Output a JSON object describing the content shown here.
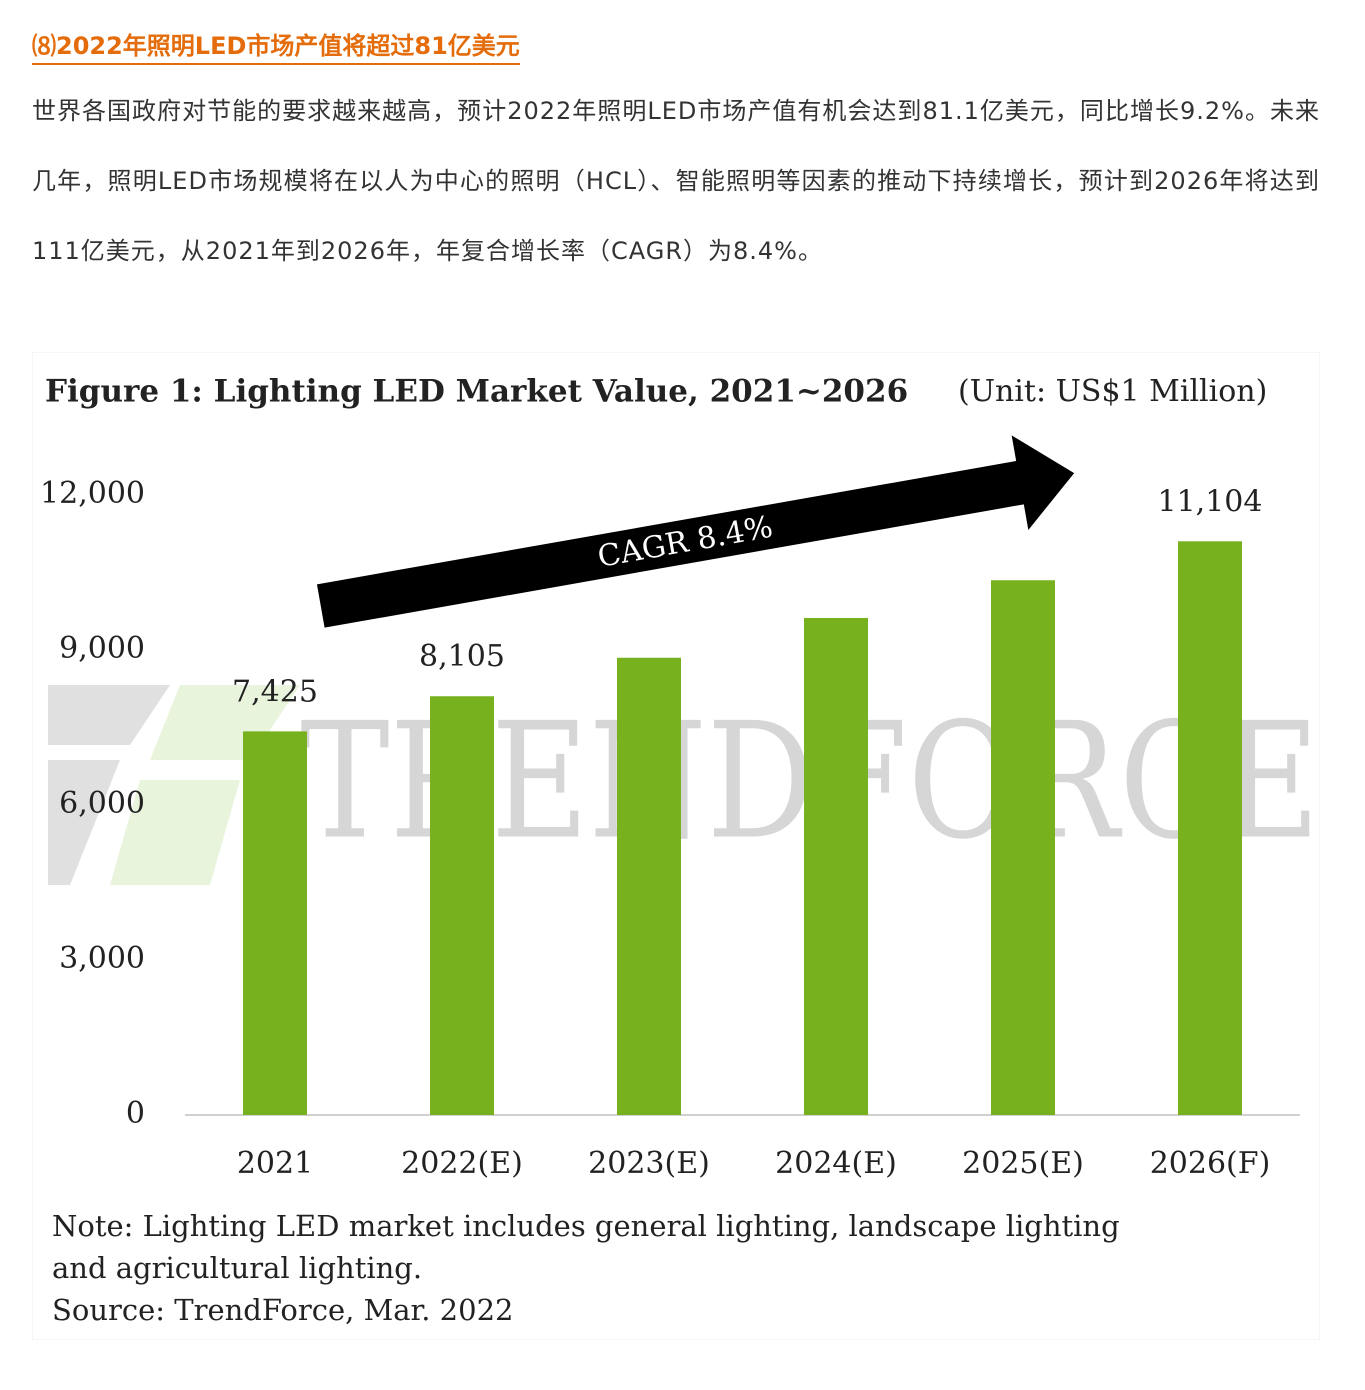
{
  "heading": "⑻2022年照明LED市场产值将超过81亿美元",
  "paragraph": "世界各国政府对节能的要求越来越高，预计2022年照明LED市场产值有机会达到81.1亿美元，同比增长9.2%。未来几年，照明LED市场规模将在以人为中心的照明（HCL）、智能照明等因素的推动下持续增长，预计到2026年将达到111亿美元，从2021年到2026年，年复合增长率（CAGR）为8.4%。",
  "chart_data": {
    "type": "bar",
    "title": "Figure 1: Lighting LED Market Value, 2021~2026",
    "unit": "(Unit: US$1 Million)",
    "annotation": "CAGR 8.4%",
    "watermark": "TRENDFORCE",
    "categories": [
      "2021",
      "2022(E)",
      "2023(E)",
      "2024(E)",
      "2025(E)",
      "2026(F)"
    ],
    "values": [
      7425,
      8105,
      8850,
      9620,
      10350,
      11104
    ],
    "value_labels": [
      "7,425",
      "8,105",
      null,
      null,
      null,
      "11,104"
    ],
    "color": "#77b11e",
    "ylim": [
      0,
      12000
    ],
    "yticks": [
      0,
      {
        "value": 3000,
        "label": "3,000"
      },
      {
        "value": 6000,
        "label": "6,000"
      },
      {
        "value": 9000,
        "label": "9,000"
      },
      {
        "value": 12000,
        "label": "12,000"
      }
    ],
    "note": [
      "Note: Lighting LED market includes general lighting, landscape lighting",
      "and agricultural lighting."
    ],
    "source": "Source: TrendForce, Mar. 2022"
  }
}
